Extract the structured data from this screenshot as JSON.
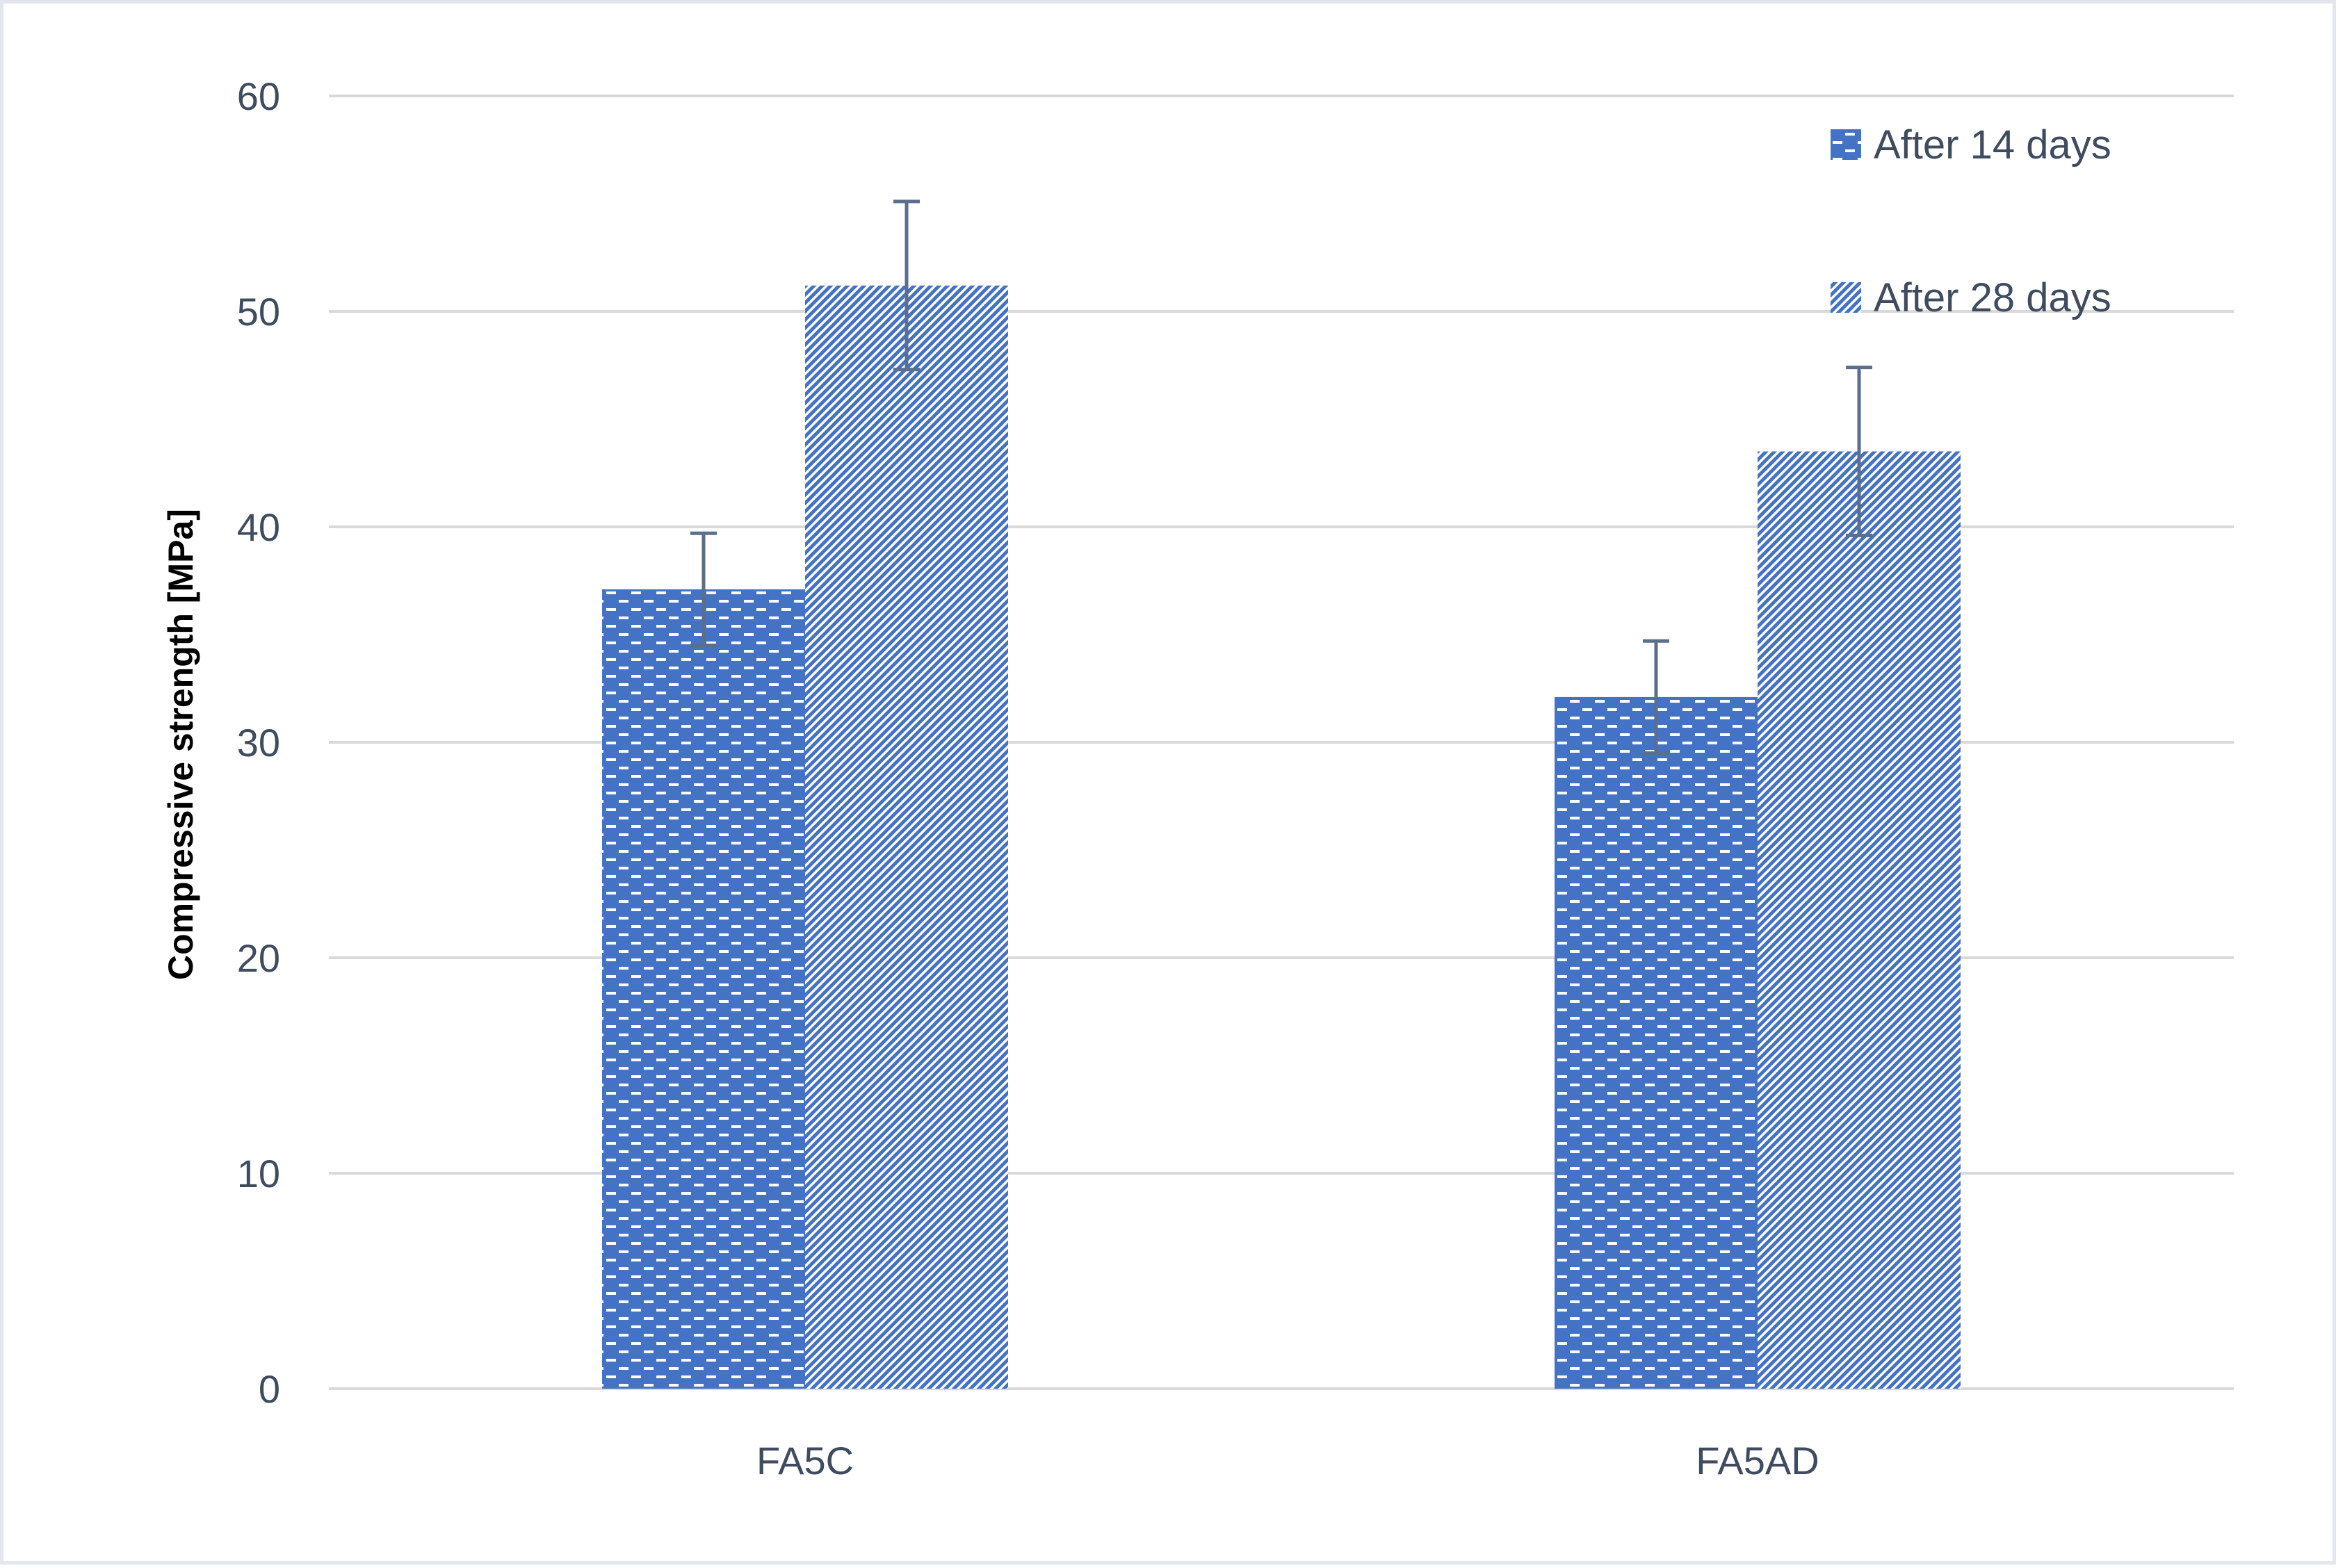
{
  "chart_data": {
    "type": "bar",
    "title": "",
    "xlabel": "",
    "ylabel": "Compressive strength [MPa]",
    "categories": [
      "FA5C",
      "FA5AD"
    ],
    "series": [
      {
        "name": "After 14 days",
        "values": [
          37.1,
          32.1
        ],
        "error": [
          2.6,
          2.6
        ],
        "pattern": "brick",
        "color": "#4472c4"
      },
      {
        "name": "After 28 days",
        "values": [
          51.2,
          43.5
        ],
        "error": [
          3.9,
          3.9
        ],
        "pattern": "diagonal",
        "color": "#4472c4"
      }
    ],
    "ylim": [
      0,
      60
    ],
    "yticks": [
      0,
      10,
      20,
      30,
      40,
      50,
      60
    ],
    "grid": true,
    "legend_position": "top-right",
    "gridline_color": "#d9d9d9",
    "error_bar_color": "#5b6e8c"
  }
}
